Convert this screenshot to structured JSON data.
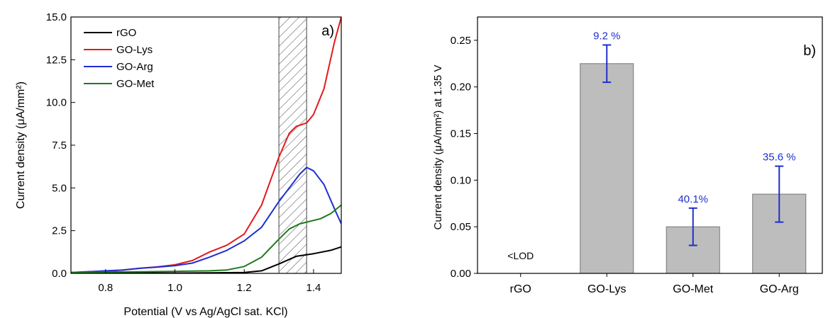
{
  "chart_data": [
    {
      "type": "line",
      "panel_label": "a)",
      "xlabel": "Potential  (V vs Ag/AgCl sat. KCl)",
      "ylabel": "Current density (μA/mm²)",
      "xlim": [
        0.7,
        1.48
      ],
      "ylim": [
        0,
        15
      ],
      "x_ticks": [
        "0.8",
        "1.0",
        "1.2",
        "1.4"
      ],
      "x_tick_values": [
        0.8,
        1.0,
        1.2,
        1.4
      ],
      "y_ticks": [
        "0.0",
        "2.5",
        "5.0",
        "7.5",
        "10.0",
        "12.5",
        "15.0"
      ],
      "y_tick_values": [
        0,
        2.5,
        5,
        7.5,
        10,
        12.5,
        15
      ],
      "legend_position": "top-left",
      "highlight_band": [
        1.3,
        1.38
      ],
      "series": [
        {
          "name": "rGO",
          "color": "#000000",
          "points": [
            [
              0.7,
              0.02
            ],
            [
              0.8,
              0.02
            ],
            [
              0.9,
              0.02
            ],
            [
              1.0,
              0.02
            ],
            [
              1.1,
              0.03
            ],
            [
              1.2,
              0.05
            ],
            [
              1.25,
              0.15
            ],
            [
              1.3,
              0.55
            ],
            [
              1.35,
              1.0
            ],
            [
              1.4,
              1.15
            ],
            [
              1.45,
              1.35
            ],
            [
              1.48,
              1.55
            ]
          ]
        },
        {
          "name": "GO-Lys",
          "color": "#e31a1c",
          "points": [
            [
              0.7,
              0.05
            ],
            [
              0.8,
              0.12
            ],
            [
              0.85,
              0.2
            ],
            [
              0.9,
              0.3
            ],
            [
              0.95,
              0.38
            ],
            [
              1.0,
              0.5
            ],
            [
              1.05,
              0.75
            ],
            [
              1.1,
              1.25
            ],
            [
              1.15,
              1.65
            ],
            [
              1.2,
              2.3
            ],
            [
              1.25,
              4.0
            ],
            [
              1.3,
              6.8
            ],
            [
              1.33,
              8.2
            ],
            [
              1.35,
              8.6
            ],
            [
              1.38,
              8.8
            ],
            [
              1.4,
              9.3
            ],
            [
              1.43,
              10.8
            ],
            [
              1.46,
              13.5
            ],
            [
              1.48,
              15.0
            ]
          ]
        },
        {
          "name": "GO-Arg",
          "color": "#1f2fcf",
          "points": [
            [
              0.7,
              0.05
            ],
            [
              0.8,
              0.15
            ],
            [
              0.85,
              0.2
            ],
            [
              0.9,
              0.3
            ],
            [
              0.95,
              0.37
            ],
            [
              1.0,
              0.45
            ],
            [
              1.05,
              0.6
            ],
            [
              1.1,
              0.95
            ],
            [
              1.15,
              1.35
            ],
            [
              1.2,
              1.9
            ],
            [
              1.25,
              2.7
            ],
            [
              1.3,
              4.2
            ],
            [
              1.33,
              5.0
            ],
            [
              1.36,
              5.8
            ],
            [
              1.38,
              6.2
            ],
            [
              1.4,
              6.0
            ],
            [
              1.43,
              5.2
            ],
            [
              1.46,
              3.8
            ],
            [
              1.48,
              2.9
            ]
          ]
        },
        {
          "name": "GO-Met",
          "color": "#1e7a1e",
          "points": [
            [
              0.7,
              0.05
            ],
            [
              0.8,
              0.08
            ],
            [
              0.9,
              0.09
            ],
            [
              1.0,
              0.12
            ],
            [
              1.1,
              0.15
            ],
            [
              1.15,
              0.2
            ],
            [
              1.2,
              0.4
            ],
            [
              1.25,
              0.95
            ],
            [
              1.3,
              2.0
            ],
            [
              1.33,
              2.6
            ],
            [
              1.36,
              2.9
            ],
            [
              1.38,
              3.0
            ],
            [
              1.42,
              3.2
            ],
            [
              1.45,
              3.5
            ],
            [
              1.48,
              4.0
            ]
          ]
        }
      ]
    },
    {
      "type": "bar",
      "panel_label": "b)",
      "xlabel": "",
      "ylabel": "Current density (μA/mm²) at 1.35 V",
      "ylim": [
        0,
        0.275
      ],
      "y_ticks": [
        "0.00",
        "0.05",
        "0.10",
        "0.15",
        "0.20",
        "0.25"
      ],
      "y_tick_values": [
        0,
        0.05,
        0.1,
        0.15,
        0.2,
        0.25
      ],
      "categories": [
        "rGO",
        "GO-Lys",
        "GO-Met",
        "GO-Arg"
      ],
      "values": [
        null,
        0.225,
        0.05,
        0.085
      ],
      "errors": [
        null,
        0.02,
        0.02,
        0.03
      ],
      "bar_labels": [
        "<LOD",
        "9.2 %",
        "40.1%",
        "35.6 %"
      ],
      "bar_color": "#bdbdbd",
      "error_color": "#1f2fcf"
    }
  ]
}
